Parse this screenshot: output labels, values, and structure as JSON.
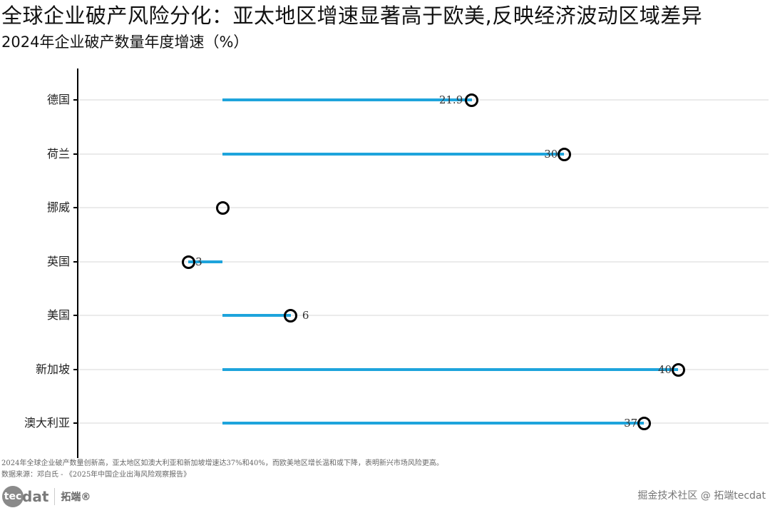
{
  "header": {
    "title": "全球企业破产风险分化：亚太地区增速显著高于欧美,反映经济波动区域差异",
    "subtitle": "2024年企业破产数量年度增速（%）"
  },
  "chart_data": {
    "type": "lollipop",
    "title": "全球企业破产风险分化：亚太地区增速显著高于欧美,反映经济波动区域差异",
    "subtitle": "2024年企业破产数量年度增速（%）",
    "xlabel": "",
    "ylabel": "",
    "baseline": 0,
    "categories": [
      "德国",
      "荷兰",
      "挪威",
      "英国",
      "美国",
      "新加坡",
      "澳大利亚"
    ],
    "values": [
      21.9,
      30,
      0,
      -3,
      6,
      40,
      37
    ],
    "value_labels": [
      "21.9",
      "30",
      "",
      "-3",
      "6",
      "40",
      "37"
    ],
    "xlim": [
      -12,
      48
    ],
    "grid": "horizontal",
    "segment_color": "#1ea4dc",
    "point_color": "#000000"
  },
  "footer": {
    "caption": "2024年全球企业破产数量创新高，亚太地区如澳大利亚和新加坡增速达37%和40%，而欧美地区增长温和或下降，表明新兴市场风险更高。",
    "source": "数据来源：邓白氏 - 《2025年中国企业出海风险观察报告》",
    "logo_left": "tec",
    "logo_right": "dat",
    "logo_cn": "拓端®",
    "watermark": "掘金技术社区 @ 拓端tecdat"
  }
}
